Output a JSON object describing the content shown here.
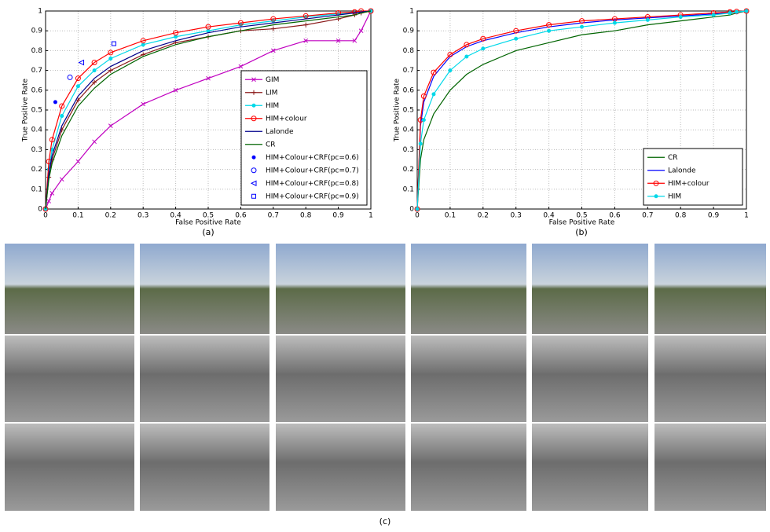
{
  "chart_data": [
    {
      "type": "line",
      "caption": "(a)",
      "xlabel": "False Positive Rate",
      "ylabel": "True Positive Rate",
      "xlim": [
        0,
        1
      ],
      "ylim": [
        0,
        1
      ],
      "xticks": [
        0,
        0.1,
        0.2,
        0.3,
        0.4,
        0.5,
        0.6,
        0.7,
        0.8,
        0.9,
        1
      ],
      "yticks": [
        0,
        0.1,
        0.2,
        0.3,
        0.4,
        0.5,
        0.6,
        0.7,
        0.8,
        0.9,
        1
      ],
      "grid": true,
      "legend": "lower right",
      "x": [
        0,
        0.01,
        0.02,
        0.05,
        0.1,
        0.15,
        0.2,
        0.3,
        0.4,
        0.5,
        0.6,
        0.7,
        0.8,
        0.9,
        0.95,
        0.97,
        1
      ],
      "series": [
        {
          "name": "GIM",
          "color": "#c000c0",
          "marker": "x",
          "values": [
            0,
            0.04,
            0.08,
            0.15,
            0.24,
            0.34,
            0.42,
            0.53,
            0.6,
            0.66,
            0.72,
            0.8,
            0.85,
            0.85,
            0.85,
            0.9,
            1
          ]
        },
        {
          "name": "LIM",
          "color": "#8b1a1a",
          "marker": "+",
          "values": [
            0,
            0.16,
            0.25,
            0.4,
            0.55,
            0.64,
            0.7,
            0.78,
            0.84,
            0.87,
            0.9,
            0.91,
            0.93,
            0.96,
            0.98,
            0.99,
            1
          ]
        },
        {
          "name": "HIM",
          "color": "#00d8e8",
          "marker": "*",
          "values": [
            0,
            0.2,
            0.3,
            0.47,
            0.62,
            0.7,
            0.76,
            0.83,
            0.87,
            0.9,
            0.93,
            0.95,
            0.97,
            0.985,
            0.99,
            0.995,
            1
          ]
        },
        {
          "name": "HIM+colour",
          "color": "#ff0000",
          "marker": "o",
          "values": [
            0,
            0.24,
            0.35,
            0.52,
            0.66,
            0.74,
            0.79,
            0.85,
            0.89,
            0.92,
            0.94,
            0.96,
            0.975,
            0.99,
            0.995,
            1,
            1
          ]
        },
        {
          "name": "Lalonde",
          "color": "#00008b",
          "values": [
            0,
            0.18,
            0.27,
            0.42,
            0.57,
            0.66,
            0.72,
            0.8,
            0.85,
            0.89,
            0.92,
            0.94,
            0.96,
            0.98,
            0.99,
            0.995,
            1
          ]
        },
        {
          "name": "CR",
          "color": "#006400",
          "values": [
            0,
            0.15,
            0.23,
            0.37,
            0.52,
            0.61,
            0.68,
            0.77,
            0.83,
            0.87,
            0.9,
            0.93,
            0.95,
            0.97,
            0.98,
            0.99,
            1
          ]
        },
        {
          "name": "HIM+Colour+CRF(pc=0.6)",
          "color": "#0000ff",
          "marker": "*",
          "line": false,
          "x": [
            0.03
          ],
          "values": [
            0.54
          ]
        },
        {
          "name": "HIM+Colour+CRF(pc=0.7)",
          "color": "#0000ff",
          "marker": "o",
          "line": false,
          "x": [
            0.075
          ],
          "values": [
            0.665
          ]
        },
        {
          "name": "HIM+Colour+CRF(pc=0.8)",
          "color": "#0000ff",
          "marker": "<",
          "line": false,
          "x": [
            0.11
          ],
          "values": [
            0.74
          ]
        },
        {
          "name": "HIM+Colour+CRF(pc=0.9)",
          "color": "#0000ff",
          "marker": "s",
          "line": false,
          "x": [
            0.21
          ],
          "values": [
            0.835
          ]
        }
      ]
    },
    {
      "type": "line",
      "caption": "(b)",
      "xlabel": "False Positive Rate",
      "ylabel": "True Positive Rate",
      "xlim": [
        0,
        1
      ],
      "ylim": [
        0,
        1
      ],
      "xticks": [
        0,
        0.1,
        0.2,
        0.3,
        0.4,
        0.5,
        0.6,
        0.7,
        0.8,
        0.9,
        1
      ],
      "yticks": [
        0,
        0.1,
        0.2,
        0.3,
        0.4,
        0.5,
        0.6,
        0.7,
        0.8,
        0.9,
        1
      ],
      "grid": true,
      "legend": "lower right",
      "x": [
        0,
        0.01,
        0.02,
        0.05,
        0.1,
        0.15,
        0.2,
        0.3,
        0.4,
        0.5,
        0.6,
        0.7,
        0.8,
        0.9,
        0.95,
        0.97,
        1
      ],
      "series": [
        {
          "name": "CR",
          "color": "#006400",
          "values": [
            0,
            0.25,
            0.35,
            0.48,
            0.6,
            0.68,
            0.73,
            0.8,
            0.84,
            0.88,
            0.9,
            0.93,
            0.95,
            0.97,
            0.98,
            0.99,
            1
          ]
        },
        {
          "name": "Lalonde",
          "color": "#0000ff",
          "values": [
            0,
            0.42,
            0.54,
            0.67,
            0.77,
            0.82,
            0.85,
            0.89,
            0.92,
            0.94,
            0.955,
            0.965,
            0.975,
            0.985,
            0.99,
            0.995,
            1
          ]
        },
        {
          "name": "HIM+colour",
          "color": "#ff0000",
          "marker": "o",
          "values": [
            0,
            0.45,
            0.57,
            0.69,
            0.78,
            0.83,
            0.86,
            0.9,
            0.93,
            0.95,
            0.96,
            0.97,
            0.98,
            0.99,
            0.995,
            0.997,
            1
          ]
        },
        {
          "name": "HIM",
          "color": "#00d8e8",
          "marker": "*",
          "values": [
            0,
            0.33,
            0.45,
            0.58,
            0.7,
            0.77,
            0.81,
            0.86,
            0.9,
            0.92,
            0.94,
            0.955,
            0.97,
            0.98,
            0.99,
            0.995,
            1
          ]
        }
      ]
    }
  ],
  "panel_c": {
    "caption": "(c)"
  }
}
